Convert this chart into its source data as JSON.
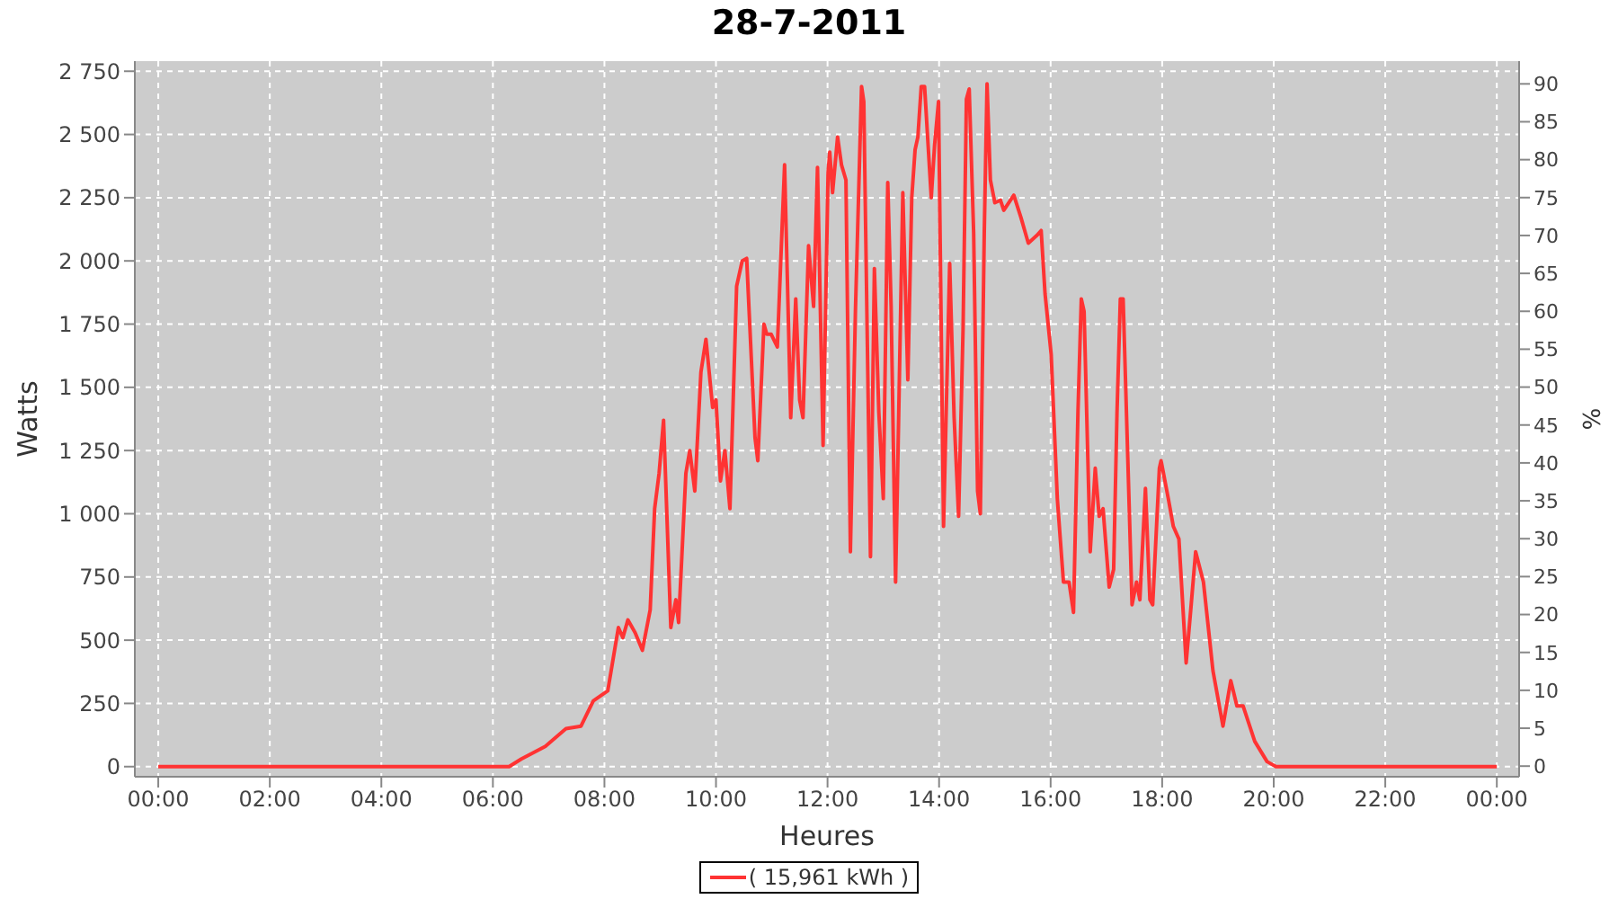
{
  "chart_data": {
    "type": "line",
    "title": "28-7-2011",
    "xlabel": "Heures",
    "ylabel": "Watts",
    "y2label": "%",
    "xlim": [
      -0.42,
      24.4
    ],
    "xticks": [
      {
        "value": 0,
        "label": "00:00"
      },
      {
        "value": 2,
        "label": "02:00"
      },
      {
        "value": 4,
        "label": "04:00"
      },
      {
        "value": 6,
        "label": "06:00"
      },
      {
        "value": 8,
        "label": "08:00"
      },
      {
        "value": 10,
        "label": "10:00"
      },
      {
        "value": 12,
        "label": "12:00"
      },
      {
        "value": 14,
        "label": "14:00"
      },
      {
        "value": 16,
        "label": "16:00"
      },
      {
        "value": 18,
        "label": "18:00"
      },
      {
        "value": 20,
        "label": "20:00"
      },
      {
        "value": 22,
        "label": "22:00"
      },
      {
        "value": 24,
        "label": "00:00"
      }
    ],
    "ylim": [
      -40,
      2790
    ],
    "yticks": [
      0,
      250,
      500,
      750,
      {
        "value": 1000,
        "label": "1 000"
      },
      {
        "value": 1250,
        "label": "1 250"
      },
      {
        "value": 1500,
        "label": "1 500"
      },
      {
        "value": 1750,
        "label": "1 750"
      },
      {
        "value": 2000,
        "label": "2 000"
      },
      {
        "value": 2250,
        "label": "2 250"
      },
      {
        "value": 2500,
        "label": "2 500"
      },
      {
        "value": 2750,
        "label": "2 750"
      }
    ],
    "y2lim": [
      -1.4,
      93
    ],
    "y2ticks": [
      0,
      5,
      10,
      15,
      20,
      25,
      30,
      35,
      40,
      45,
      50,
      55,
      60,
      65,
      70,
      75,
      80,
      85,
      90
    ],
    "grid": true,
    "legend": "bottom",
    "marker": "none",
    "line_style": "solid",
    "series": [
      {
        "name": "( 15,961 kWh )",
        "color": "#ff3333",
        "x": [
          0,
          2,
          4,
          6,
          6.29,
          6.51,
          6.94,
          7.31,
          7.58,
          7.8,
          8.06,
          8.25,
          8.33,
          8.42,
          8.55,
          8.68,
          8.82,
          8.9,
          8.98,
          9.06,
          9.19,
          9.28,
          9.33,
          9.46,
          9.53,
          9.62,
          9.73,
          9.82,
          9.94,
          10.0,
          10.08,
          10.16,
          10.25,
          10.37,
          10.47,
          10.55,
          10.7,
          10.75,
          10.86,
          10.91,
          10.99,
          11.1,
          11.23,
          11.34,
          11.43,
          11.5,
          11.56,
          11.66,
          11.75,
          11.82,
          11.92,
          12.01,
          12.04,
          12.09,
          12.18,
          12.25,
          12.33,
          12.41,
          12.5,
          12.61,
          12.65,
          12.77,
          12.84,
          12.92,
          13.0,
          13.08,
          13.14,
          13.22,
          13.35,
          13.44,
          13.51,
          13.57,
          13.62,
          13.68,
          13.74,
          13.86,
          13.92,
          13.99,
          14.08,
          14.19,
          14.27,
          14.35,
          14.43,
          14.49,
          14.54,
          14.62,
          14.69,
          14.74,
          14.81,
          14.86,
          14.92,
          15.0,
          15.1,
          15.16,
          15.34,
          15.47,
          15.6,
          15.75,
          15.83,
          15.9,
          16.01,
          16.12,
          16.23,
          16.33,
          16.41,
          16.49,
          16.55,
          16.6,
          16.71,
          16.8,
          16.87,
          16.94,
          17.05,
          17.13,
          17.19,
          17.25,
          17.3,
          17.46,
          17.54,
          17.6,
          17.7,
          17.78,
          17.83,
          17.95,
          17.98,
          18.11,
          18.2,
          18.3,
          18.43,
          18.52,
          18.6,
          18.74,
          18.91,
          19.09,
          19.23,
          19.34,
          19.45,
          19.66,
          19.88,
          20.04,
          22,
          24
        ],
        "values": [
          0,
          0,
          0,
          0,
          0,
          30,
          80,
          150,
          160,
          260,
          300,
          550,
          510,
          580,
          530,
          460,
          620,
          1020,
          1160,
          1370,
          550,
          660,
          570,
          1160,
          1250,
          1090,
          1560,
          1690,
          1420,
          1450,
          1130,
          1250,
          1020,
          1900,
          2000,
          2010,
          1300,
          1210,
          1750,
          1710,
          1710,
          1660,
          2380,
          1380,
          1850,
          1450,
          1380,
          2060,
          1820,
          2370,
          1270,
          2350,
          2430,
          2270,
          2490,
          2380,
          2320,
          850,
          1800,
          2690,
          2630,
          830,
          1970,
          1400,
          1060,
          2310,
          1820,
          730,
          2270,
          1530,
          2250,
          2440,
          2490,
          2690,
          2690,
          2250,
          2460,
          2630,
          950,
          1990,
          1380,
          990,
          1730,
          2640,
          2680,
          2110,
          1090,
          1000,
          2110,
          2700,
          2320,
          2230,
          2240,
          2200,
          2260,
          2170,
          2070,
          2100,
          2120,
          1870,
          1630,
          1060,
          730,
          730,
          610,
          1400,
          1850,
          1800,
          850,
          1180,
          990,
          1020,
          710,
          780,
          1400,
          1850,
          1850,
          640,
          730,
          660,
          1100,
          660,
          640,
          1180,
          1210,
          1060,
          950,
          900,
          410,
          640,
          850,
          730,
          380,
          160,
          340,
          240,
          240,
          100,
          20,
          0,
          0,
          0
        ]
      }
    ]
  }
}
